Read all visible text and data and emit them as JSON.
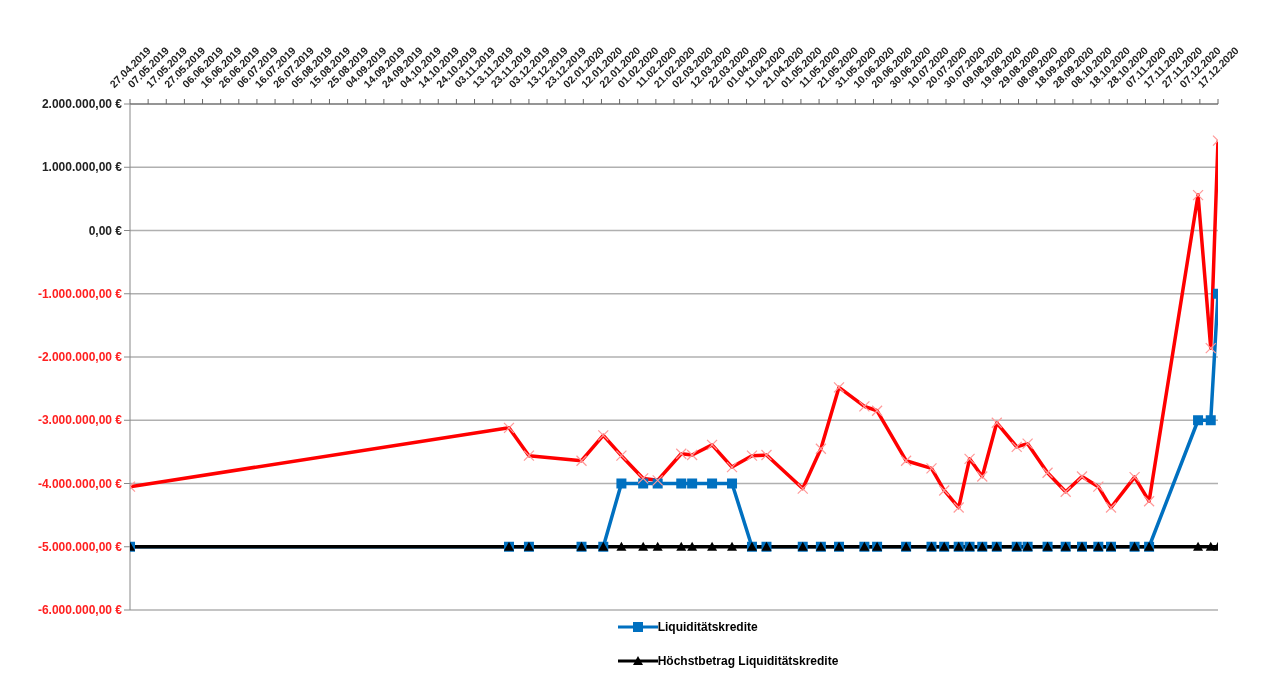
{
  "chart_data": {
    "type": "line",
    "x": [
      "2019-04-27",
      "2019-11-22",
      "2019-12-03",
      "2020-01-01",
      "2020-01-13",
      "2020-01-23",
      "2020-02-04",
      "2020-02-12",
      "2020-02-25",
      "2020-03-02",
      "2020-03-13",
      "2020-03-24",
      "2020-04-04",
      "2020-04-12",
      "2020-05-02",
      "2020-05-12",
      "2020-05-22",
      "2020-06-05",
      "2020-06-12",
      "2020-06-28",
      "2020-07-12",
      "2020-07-19",
      "2020-07-27",
      "2020-08-02",
      "2020-08-09",
      "2020-08-17",
      "2020-08-28",
      "2020-09-03",
      "2020-09-14",
      "2020-09-24",
      "2020-10-03",
      "2020-10-12",
      "2020-10-19",
      "2020-11-01",
      "2020-11-09",
      "2020-12-06",
      "2020-12-13",
      "2020-12-17"
    ],
    "series": [
      {
        "name": "Liquiditätskredite",
        "color": "#0070c0",
        "marker": "square",
        "values": [
          -5000000,
          -5000000,
          -5000000,
          -5000000,
          -5000000,
          -4000000,
          -4000000,
          -4000000,
          -4000000,
          -4000000,
          -4000000,
          -4000000,
          -5000000,
          -5000000,
          -5000000,
          -5000000,
          -5000000,
          -5000000,
          -5000000,
          -5000000,
          -5000000,
          -5000000,
          -5000000,
          -5000000,
          -5000000,
          -5000000,
          -5000000,
          -5000000,
          -5000000,
          -5000000,
          -5000000,
          -5000000,
          -5000000,
          -5000000,
          -5000000,
          -3000000,
          -3000000,
          -1000000
        ]
      },
      {
        "name": "Höchstbetrag Liquiditätskredite",
        "color": "#000000",
        "marker": "triangle",
        "values": [
          -5000000,
          -5000000,
          -5000000,
          -5000000,
          -5000000,
          -5000000,
          -5000000,
          -5000000,
          -5000000,
          -5000000,
          -5000000,
          -5000000,
          -5000000,
          -5000000,
          -5000000,
          -5000000,
          -5000000,
          -5000000,
          -5000000,
          -5000000,
          -5000000,
          -5000000,
          -5000000,
          -5000000,
          -5000000,
          -5000000,
          -5000000,
          -5000000,
          -5000000,
          -5000000,
          -5000000,
          -5000000,
          -5000000,
          -5000000,
          -5000000,
          -5000000,
          -5000000,
          -5000000
        ]
      },
      {
        "color": "#ff0000",
        "marker": "cross",
        "values": [
          -4050000,
          -3120000,
          -3560000,
          -3640000,
          -3240000,
          -3560000,
          -3920000,
          -3950000,
          -3530000,
          -3550000,
          -3390000,
          -3740000,
          -3560000,
          -3550000,
          -4080000,
          -3450000,
          -2480000,
          -2780000,
          -2850000,
          -3640000,
          -3760000,
          -4110000,
          -4380000,
          -3610000,
          -3890000,
          -3040000,
          -3420000,
          -3370000,
          -3830000,
          -4130000,
          -3890000,
          -4050000,
          -4380000,
          -3900000,
          -4280000,
          560000,
          -1860000,
          1420000
        ]
      }
    ],
    "xlim": [
      "2019-04-27",
      "2020-12-17"
    ],
    "xticks": [
      {
        "value": "2019-04-27",
        "label": "27.04.2019"
      },
      {
        "value": "2019-05-07",
        "label": "07.05.2019"
      },
      {
        "value": "2019-05-17",
        "label": "17.05.2019"
      },
      {
        "value": "2019-05-27",
        "label": "27.05.2019"
      },
      {
        "value": "2019-06-06",
        "label": "06.06.2019"
      },
      {
        "value": "2019-06-16",
        "label": "16.06.2019"
      },
      {
        "value": "2019-06-26",
        "label": "26.06.2019"
      },
      {
        "value": "2019-07-06",
        "label": "06.07.2019"
      },
      {
        "value": "2019-07-16",
        "label": "16.07.2019"
      },
      {
        "value": "2019-07-26",
        "label": "26.07.2019"
      },
      {
        "value": "2019-08-05",
        "label": "05.08.2019"
      },
      {
        "value": "2019-08-15",
        "label": "15.08.2019"
      },
      {
        "value": "2019-08-25",
        "label": "25.08.2019"
      },
      {
        "value": "2019-09-04",
        "label": "04.09.2019"
      },
      {
        "value": "2019-09-14",
        "label": "14.09.2019"
      },
      {
        "value": "2019-09-24",
        "label": "24.09.2019"
      },
      {
        "value": "2019-10-04",
        "label": "04.10.2019"
      },
      {
        "value": "2019-10-14",
        "label": "14.10.2019"
      },
      {
        "value": "2019-10-24",
        "label": "24.10.2019"
      },
      {
        "value": "2019-11-03",
        "label": "03.11.2019"
      },
      {
        "value": "2019-11-13",
        "label": "13.11.2019"
      },
      {
        "value": "2019-11-23",
        "label": "23.11.2019"
      },
      {
        "value": "2019-12-03",
        "label": "03.12.2019"
      },
      {
        "value": "2019-12-13",
        "label": "13.12.2019"
      },
      {
        "value": "2019-12-23",
        "label": "23.12.2019"
      },
      {
        "value": "2020-01-02",
        "label": "02.01.2020"
      },
      {
        "value": "2020-01-12",
        "label": "12.01.2020"
      },
      {
        "value": "2020-01-22",
        "label": "22.01.2020"
      },
      {
        "value": "2020-02-01",
        "label": "01.02.2020"
      },
      {
        "value": "2020-02-11",
        "label": "11.02.2020"
      },
      {
        "value": "2020-02-21",
        "label": "21.02.2020"
      },
      {
        "value": "2020-03-02",
        "label": "02.03.2020"
      },
      {
        "value": "2020-03-12",
        "label": "12.03.2020"
      },
      {
        "value": "2020-03-22",
        "label": "22.03.2020"
      },
      {
        "value": "2020-04-01",
        "label": "01.04.2020"
      },
      {
        "value": "2020-04-11",
        "label": "11.04.2020"
      },
      {
        "value": "2020-04-21",
        "label": "21.04.2020"
      },
      {
        "value": "2020-05-01",
        "label": "01.05.2020"
      },
      {
        "value": "2020-05-11",
        "label": "11.05.2020"
      },
      {
        "value": "2020-05-21",
        "label": "21.05.2020"
      },
      {
        "value": "2020-05-31",
        "label": "31.05.2020"
      },
      {
        "value": "2020-06-10",
        "label": "10.06.2020"
      },
      {
        "value": "2020-06-20",
        "label": "20.06.2020"
      },
      {
        "value": "2020-06-30",
        "label": "30.06.2020"
      },
      {
        "value": "2020-07-10",
        "label": "10.07.2020"
      },
      {
        "value": "2020-07-20",
        "label": "20.07.2020"
      },
      {
        "value": "2020-07-30",
        "label": "30.07.2020"
      },
      {
        "value": "2020-08-09",
        "label": "09.08.2020"
      },
      {
        "value": "2020-08-19",
        "label": "19.08.2020"
      },
      {
        "value": "2020-08-29",
        "label": "29.08.2020"
      },
      {
        "value": "2020-09-08",
        "label": "08.09.2020"
      },
      {
        "value": "2020-09-18",
        "label": "18.09.2020"
      },
      {
        "value": "2020-09-28",
        "label": "28.09.2020"
      },
      {
        "value": "2020-10-08",
        "label": "08.10.2020"
      },
      {
        "value": "2020-10-18",
        "label": "18.10.2020"
      },
      {
        "value": "2020-10-28",
        "label": "28.10.2020"
      },
      {
        "value": "2020-11-07",
        "label": "07.11.2020"
      },
      {
        "value": "2020-11-17",
        "label": "17.11.2020"
      },
      {
        "value": "2020-11-27",
        "label": "27.11.2020"
      },
      {
        "value": "2020-12-07",
        "label": "07.12.2020"
      },
      {
        "value": "2020-12-17",
        "label": "17.12.2020"
      }
    ],
    "ylim": [
      -6000000,
      2000000
    ],
    "yticks": [
      {
        "value": -6000000,
        "label": "-6.000.000,00 €"
      },
      {
        "value": -5000000,
        "label": "-5.000.000,00 €"
      },
      {
        "value": -4000000,
        "label": "-4.000.000,00 €"
      },
      {
        "value": -3000000,
        "label": "-3.000.000,00 €"
      },
      {
        "value": -2000000,
        "label": "-2.000.000,00 €"
      },
      {
        "value": -1000000,
        "label": "-1.000.000,00 €"
      },
      {
        "value": 0,
        "label": "0,00 €"
      },
      {
        "value": 1000000,
        "label": "1.000.000,00 €"
      },
      {
        "value": 2000000,
        "label": "2.000.000,00 €"
      }
    ],
    "grid": "y",
    "legend": "bottom",
    "line_style": "solid"
  }
}
